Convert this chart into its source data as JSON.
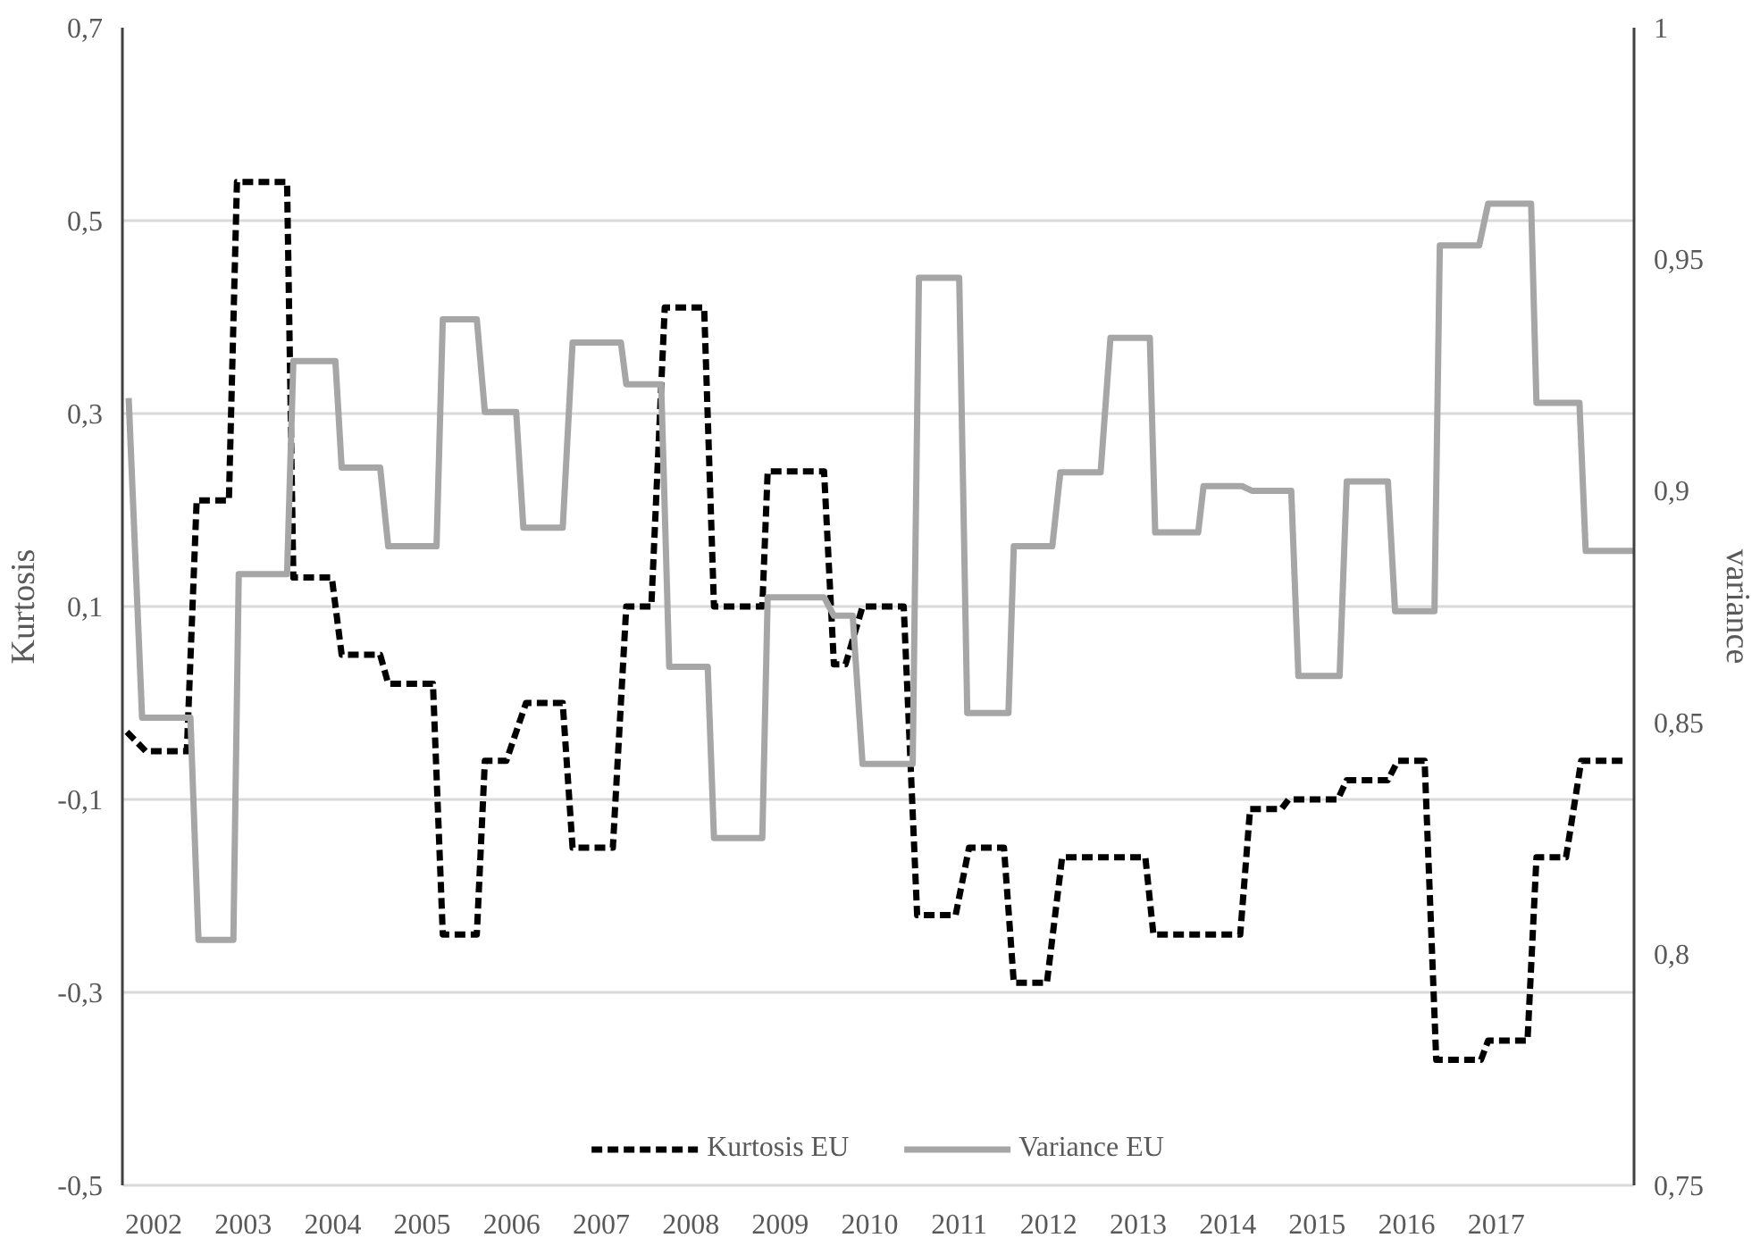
{
  "chart_data": {
    "type": "line",
    "ylabel": "Kurtosis",
    "y2label": "variance",
    "xlim": [
      2001.65,
      2018.54
    ],
    "xticks": [
      2002,
      2003,
      2004,
      2005,
      2006,
      2007,
      2008,
      2009,
      2010,
      2011,
      2012,
      2013,
      2014,
      2015,
      2016,
      2017
    ],
    "ylim": [
      -0.5,
      0.7
    ],
    "yticks": [
      {
        "value": -0.5,
        "label": "-0,5"
      },
      {
        "value": -0.3,
        "label": "-0,3"
      },
      {
        "value": -0.1,
        "label": "-0,1"
      },
      {
        "value": 0.1,
        "label": "0,1"
      },
      {
        "value": 0.3,
        "label": "0,3"
      },
      {
        "value": 0.5,
        "label": "0,5"
      },
      {
        "value": 0.7,
        "label": "0,7"
      }
    ],
    "y2lim": [
      0.75,
      1
    ],
    "y2ticks": [
      {
        "value": 0.75,
        "label": "0,75"
      },
      {
        "value": 0.8,
        "label": "0,8"
      },
      {
        "value": 0.85,
        "label": "0,85"
      },
      {
        "value": 0.9,
        "label": "0,9"
      },
      {
        "value": 0.95,
        "label": "0,95"
      },
      {
        "value": 1,
        "label": "1"
      }
    ],
    "grid": "y",
    "legend": "bottom",
    "series": [
      {
        "name": "Kurtosis EU",
        "color": "#000000",
        "line_style": "dashed",
        "x": [
          2001.7,
          2001.91,
          2002.37,
          2002.48,
          2002.84,
          2002.93,
          2003.49,
          2003.56,
          2003.99,
          2004.1,
          2004.53,
          2004.62,
          2005.12,
          2005.23,
          2005.61,
          2005.7,
          2005.94,
          2006.16,
          2006.57,
          2006.68,
          2007.13,
          2007.28,
          2007.56,
          2007.71,
          2008.15,
          2008.26,
          2008.8,
          2008.86,
          2009.49,
          2009.6,
          2009.73,
          2009.92,
          2010.38,
          2010.53,
          2010.96,
          2011.11,
          2011.5,
          2011.61,
          2011.98,
          2012.15,
          2013.08,
          2013.17,
          2014.14,
          2014.25,
          2014.6,
          2014.68,
          2015.23,
          2015.33,
          2015.79,
          2015.9,
          2016.2,
          2016.33,
          2016.83,
          2016.91,
          2017.35,
          2017.45,
          2017.78,
          2017.95,
          2018.43
        ],
        "values": [
          -0.03,
          -0.05,
          -0.05,
          0.21,
          0.21,
          0.54,
          0.54,
          0.13,
          0.13,
          0.05,
          0.05,
          0.02,
          0.02,
          -0.24,
          -0.24,
          -0.06,
          -0.06,
          0.0,
          0.0,
          -0.15,
          -0.15,
          0.1,
          0.1,
          0.41,
          0.41,
          0.1,
          0.1,
          0.24,
          0.24,
          0.04,
          0.04,
          0.1,
          0.1,
          -0.22,
          -0.22,
          -0.15,
          -0.15,
          -0.29,
          -0.29,
          -0.16,
          -0.16,
          -0.24,
          -0.24,
          -0.11,
          -0.11,
          -0.1,
          -0.1,
          -0.08,
          -0.08,
          -0.06,
          -0.06,
          -0.37,
          -0.37,
          -0.35,
          -0.35,
          -0.16,
          -0.16,
          -0.06,
          -0.06
        ]
      },
      {
        "name": "Variance EU",
        "color": "#a6a6a6",
        "line_style": "solid",
        "axis": "y2",
        "x": [
          2001.72,
          2001.87,
          2002.41,
          2002.5,
          2002.89,
          2002.95,
          2003.49,
          2003.56,
          2004.03,
          2004.1,
          2004.53,
          2004.62,
          2005.16,
          2005.23,
          2005.61,
          2005.7,
          2006.05,
          2006.13,
          2006.57,
          2006.68,
          2007.22,
          2007.28,
          2007.67,
          2007.76,
          2008.19,
          2008.26,
          2008.8,
          2008.86,
          2009.49,
          2009.6,
          2009.81,
          2009.92,
          2010.48,
          2010.55,
          2011.0,
          2011.09,
          2011.55,
          2011.61,
          2012.04,
          2012.13,
          2012.58,
          2012.69,
          2013.13,
          2013.19,
          2013.67,
          2013.73,
          2014.16,
          2014.27,
          2014.71,
          2014.79,
          2015.25,
          2015.33,
          2015.79,
          2015.87,
          2016.31,
          2016.37,
          2016.81,
          2016.91,
          2017.39,
          2017.45,
          2017.93,
          2018.0,
          2018.54
        ],
        "values": [
          0.92,
          0.851,
          0.851,
          0.803,
          0.803,
          0.882,
          0.882,
          0.928,
          0.928,
          0.905,
          0.905,
          0.888,
          0.888,
          0.937,
          0.937,
          0.917,
          0.917,
          0.892,
          0.892,
          0.932,
          0.932,
          0.923,
          0.923,
          0.862,
          0.862,
          0.825,
          0.825,
          0.877,
          0.877,
          0.873,
          0.873,
          0.841,
          0.841,
          0.946,
          0.946,
          0.852,
          0.852,
          0.888,
          0.888,
          0.904,
          0.904,
          0.933,
          0.933,
          0.891,
          0.891,
          0.901,
          0.901,
          0.9,
          0.9,
          0.86,
          0.86,
          0.902,
          0.902,
          0.874,
          0.874,
          0.953,
          0.953,
          0.962,
          0.962,
          0.919,
          0.919,
          0.887,
          0.887
        ]
      }
    ]
  }
}
